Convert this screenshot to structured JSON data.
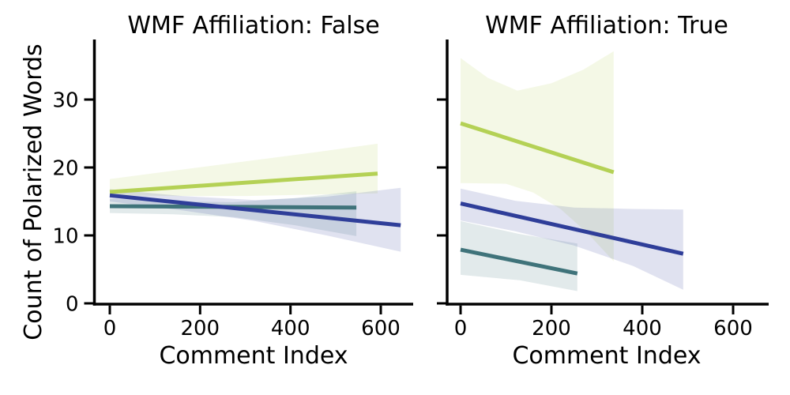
{
  "chart_data": [
    {
      "type": "line",
      "facet_label": "WMF Affiliation: False",
      "title": "WMF Affiliation: False",
      "xlabel": "Comment Index",
      "ylabel": "Count of Polarized Words",
      "xticks": [
        0,
        200,
        400,
        600
      ],
      "yticks": [
        0,
        10,
        20,
        30
      ],
      "xlim": [
        -31,
        672
      ],
      "ylim": [
        -0.2,
        38.8
      ],
      "grid": false,
      "legend": "none",
      "show_ytick_labels": true,
      "series": [
        {
          "name": "yellow-green",
          "color": "#b4d155",
          "line": [
            [
              0,
              16.4
            ],
            [
              593,
              19.1
            ]
          ],
          "ci_upper": [
            [
              0,
              18.3
            ],
            [
              150,
              19.6
            ],
            [
              300,
              20.9
            ],
            [
              450,
              22.2
            ],
            [
              593,
              23.5
            ]
          ],
          "ci_lower": [
            [
              0,
              15.9
            ],
            [
              150,
              15.8
            ],
            [
              300,
              15.8
            ],
            [
              450,
              16.0
            ],
            [
              593,
              16.2
            ]
          ]
        },
        {
          "name": "teal",
          "color": "#3f737a",
          "line": [
            [
              0,
              14.3
            ],
            [
              546,
              14.1
            ]
          ],
          "ci_upper": [
            [
              0,
              15.4
            ],
            [
              140,
              15.0
            ],
            [
              273,
              14.9
            ],
            [
              410,
              15.5
            ],
            [
              546,
              16.5
            ]
          ],
          "ci_lower": [
            [
              0,
              13.3
            ],
            [
              140,
              13.1
            ],
            [
              273,
              12.7
            ],
            [
              410,
              11.5
            ],
            [
              546,
              9.9
            ]
          ]
        },
        {
          "name": "dark-blue",
          "color": "#2f3e99",
          "line": [
            [
              0,
              15.9
            ],
            [
              644,
              11.5
            ]
          ],
          "ci_upper": [
            [
              0,
              16.8
            ],
            [
              160,
              15.8
            ],
            [
              322,
              15.2
            ],
            [
              480,
              15.7
            ],
            [
              644,
              17.0
            ]
          ],
          "ci_lower": [
            [
              0,
              15.0
            ],
            [
              160,
              13.7
            ],
            [
              322,
              12.1
            ],
            [
              480,
              10.0
            ],
            [
              644,
              7.6
            ]
          ]
        }
      ]
    },
    {
      "type": "line",
      "facet_label": "WMF Affiliation: True",
      "title": "WMF Affiliation: True",
      "xlabel": "Comment Index",
      "ylabel": "Count of Polarized Words",
      "xticks": [
        0,
        200,
        400,
        600
      ],
      "yticks": [
        0,
        10,
        20,
        30
      ],
      "xlim": [
        -31,
        672
      ],
      "ylim": [
        -0.2,
        38.8
      ],
      "grid": false,
      "legend": "none",
      "show_ytick_labels": false,
      "series": [
        {
          "name": "yellow-green",
          "color": "#b4d155",
          "line": [
            [
              0,
              26.5
            ],
            [
              337,
              19.3
            ]
          ],
          "ci_upper": [
            [
              0,
              36.1
            ],
            [
              60,
              33.2
            ],
            [
              125,
              31.3
            ],
            [
              200,
              32.4
            ],
            [
              270,
              34.4
            ],
            [
              337,
              37.1
            ]
          ],
          "ci_lower": [
            [
              0,
              17.7
            ],
            [
              100,
              17.6
            ],
            [
              160,
              16.3
            ],
            [
              220,
              13.9
            ],
            [
              280,
              10.3
            ],
            [
              337,
              6.2
            ]
          ]
        },
        {
          "name": "teal",
          "color": "#3f737a",
          "line": [
            [
              0,
              7.9
            ],
            [
              257,
              4.4
            ]
          ],
          "ci_upper": [
            [
              0,
              12.1
            ],
            [
              130,
              10.2
            ],
            [
              257,
              8.8
            ]
          ],
          "ci_lower": [
            [
              0,
              4.2
            ],
            [
              130,
              3.4
            ],
            [
              257,
              1.8
            ]
          ]
        },
        {
          "name": "dark-blue",
          "color": "#2f3e99",
          "line": [
            [
              0,
              14.7
            ],
            [
              490,
              7.3
            ]
          ],
          "ci_upper": [
            [
              0,
              16.9
            ],
            [
              120,
              15.1
            ],
            [
              250,
              14.1
            ],
            [
              380,
              13.9
            ],
            [
              490,
              13.8
            ]
          ],
          "ci_lower": [
            [
              0,
              12.2
            ],
            [
              120,
              10.6
            ],
            [
              250,
              8.5
            ],
            [
              380,
              5.5
            ],
            [
              490,
              2.0
            ]
          ]
        }
      ]
    }
  ]
}
